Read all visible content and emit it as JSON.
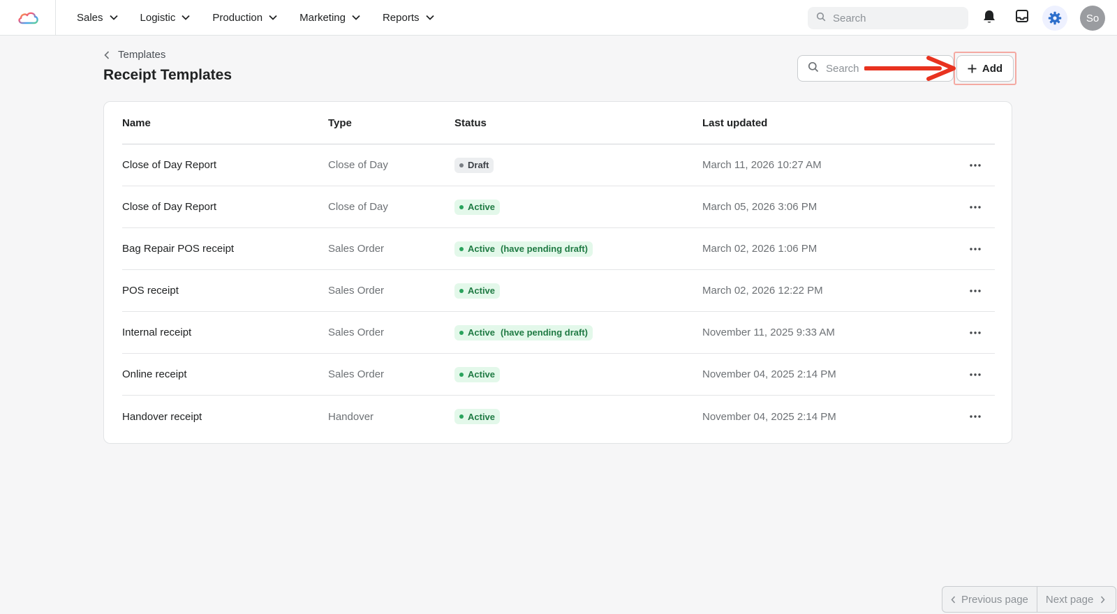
{
  "nav": {
    "items": [
      {
        "label": "Sales"
      },
      {
        "label": "Logistic"
      },
      {
        "label": "Production"
      },
      {
        "label": "Marketing"
      },
      {
        "label": "Reports"
      }
    ],
    "search_placeholder": "Search",
    "avatar_initials": "So"
  },
  "header": {
    "breadcrumb": "Templates",
    "title": "Receipt Templates",
    "search_placeholder": "Search",
    "add_label": "Add"
  },
  "table": {
    "columns": {
      "name": "Name",
      "type": "Type",
      "status": "Status",
      "updated": "Last updated"
    },
    "rows": [
      {
        "name": "Close of Day Report",
        "type": "Close of Day",
        "status": "Draft",
        "note": "",
        "updated": "March 11, 2026 10:27 AM"
      },
      {
        "name": "Close of Day Report",
        "type": "Close of Day",
        "status": "Active",
        "note": "",
        "updated": "March 05, 2026 3:06 PM"
      },
      {
        "name": "Bag Repair POS receipt",
        "type": "Sales Order",
        "status": "Active",
        "note": "(have pending draft)",
        "updated": "March 02, 2026 1:06 PM"
      },
      {
        "name": "POS receipt",
        "type": "Sales Order",
        "status": "Active",
        "note": "",
        "updated": "March 02, 2026 12:22 PM"
      },
      {
        "name": "Internal receipt",
        "type": "Sales Order",
        "status": "Active",
        "note": "(have pending draft)",
        "updated": "November 11, 2025 9:33 AM"
      },
      {
        "name": "Online receipt",
        "type": "Sales Order",
        "status": "Active",
        "note": "",
        "updated": "November 04, 2025 2:14 PM"
      },
      {
        "name": "Handover receipt",
        "type": "Handover",
        "status": "Active",
        "note": "",
        "updated": "November 04, 2025 2:14 PM"
      }
    ]
  },
  "pagination": {
    "prev_label": "Previous page",
    "next_label": "Next page"
  },
  "colors": {
    "accent": "#2c6ecb",
    "active_badge_bg": "#e3f8ea",
    "active_badge_text": "#1f7a43",
    "draft_badge_bg": "#eceef0",
    "annotation_arrow": "#e8321f"
  }
}
